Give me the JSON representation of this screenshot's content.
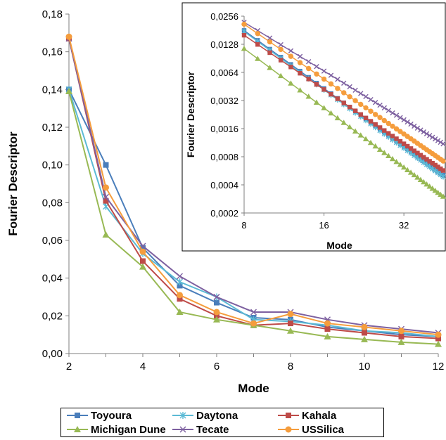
{
  "chart_data": [
    {
      "type": "line",
      "xlabel": "Mode",
      "ylabel": "Fourier Descriptor",
      "xlim": [
        2,
        12
      ],
      "ylim": [
        0,
        0.18
      ],
      "x_ticks": [
        "2",
        "4",
        "6",
        "8",
        "10",
        "12"
      ],
      "y_ticks": [
        "0,00",
        "0,02",
        "0,04",
        "0,06",
        "0,08",
        "0,10",
        "0,12",
        "0,14",
        "0,16",
        "0,18"
      ],
      "x": [
        2,
        3,
        4,
        5,
        6,
        7,
        8,
        9,
        10,
        11,
        12
      ],
      "series": [
        {
          "name": "Toyoura",
          "color": "#4a7ebb",
          "marker": "square",
          "values": [
            0.14,
            0.1,
            0.056,
            0.036,
            0.027,
            0.019,
            0.018,
            0.014,
            0.012,
            0.01,
            0.009
          ]
        },
        {
          "name": "Daytona",
          "color": "#5bbad5",
          "marker": "star",
          "values": [
            0.14,
            0.078,
            0.053,
            0.038,
            0.03,
            0.018,
            0.017,
            0.015,
            0.012,
            0.011,
            0.009
          ]
        },
        {
          "name": "Kahala",
          "color": "#be4b48",
          "marker": "square",
          "values": [
            0.167,
            0.081,
            0.049,
            0.029,
            0.02,
            0.015,
            0.016,
            0.013,
            0.011,
            0.009,
            0.008
          ]
        },
        {
          "name": "Michigan Dune",
          "color": "#98b954",
          "marker": "triangle",
          "values": [
            0.139,
            0.063,
            0.046,
            0.022,
            0.018,
            0.015,
            0.012,
            0.009,
            0.0075,
            0.006,
            0.005
          ]
        },
        {
          "name": "Tecate",
          "color": "#7d60a0",
          "marker": "x",
          "values": [
            0.167,
            0.083,
            0.057,
            0.041,
            0.03,
            0.022,
            0.022,
            0.018,
            0.015,
            0.013,
            0.011
          ]
        },
        {
          "name": "USSilica",
          "color": "#f59d3d",
          "marker": "circle",
          "values": [
            0.168,
            0.088,
            0.054,
            0.031,
            0.022,
            0.016,
            0.021,
            0.016,
            0.014,
            0.012,
            0.01
          ]
        }
      ]
    },
    {
      "type": "line",
      "scale": "log-log",
      "xlabel": "Mode",
      "ylabel": "Fourier Descriptor",
      "xlim": [
        8,
        45
      ],
      "ylim": [
        0.0002,
        0.0256
      ],
      "x_ticks": [
        "8",
        "16",
        "32"
      ],
      "y_ticks": [
        "0,0002",
        "0,0004",
        "0,0008",
        "0,0016",
        "0,0032",
        "0,0064",
        "0,0128",
        "0,0256"
      ],
      "x": [
        8,
        9,
        10,
        11,
        12,
        13,
        14,
        15,
        16,
        17,
        18,
        19,
        20,
        21,
        22,
        23,
        24,
        25,
        26,
        27,
        28,
        29,
        30,
        31,
        32,
        33,
        34,
        35,
        36,
        37,
        38,
        39,
        40,
        41,
        42,
        43,
        44,
        45
      ],
      "series": [
        {
          "name": "Toyoura",
          "color": "#4a7ebb",
          "marker": "square",
          "start": 0.018,
          "end": 0.00051
        },
        {
          "name": "Daytona",
          "color": "#5bbad5",
          "marker": "star",
          "start": 0.0175,
          "end": 0.00049
        },
        {
          "name": "Kahala",
          "color": "#be4b48",
          "marker": "square",
          "start": 0.016,
          "end": 0.00057
        },
        {
          "name": "Michigan Dune",
          "color": "#98b954",
          "marker": "triangle",
          "start": 0.0115,
          "end": 0.0003
        },
        {
          "name": "Tecate",
          "color": "#7d60a0",
          "marker": "x",
          "start": 0.022,
          "end": 0.0011
        },
        {
          "name": "USSilica",
          "color": "#f59d3d",
          "marker": "circle",
          "start": 0.021,
          "end": 0.00072
        }
      ]
    }
  ],
  "legend": {
    "items": [
      "Toyoura",
      "Daytona",
      "Kahala",
      "Michigan Dune",
      "Tecate",
      "USSilica"
    ]
  }
}
